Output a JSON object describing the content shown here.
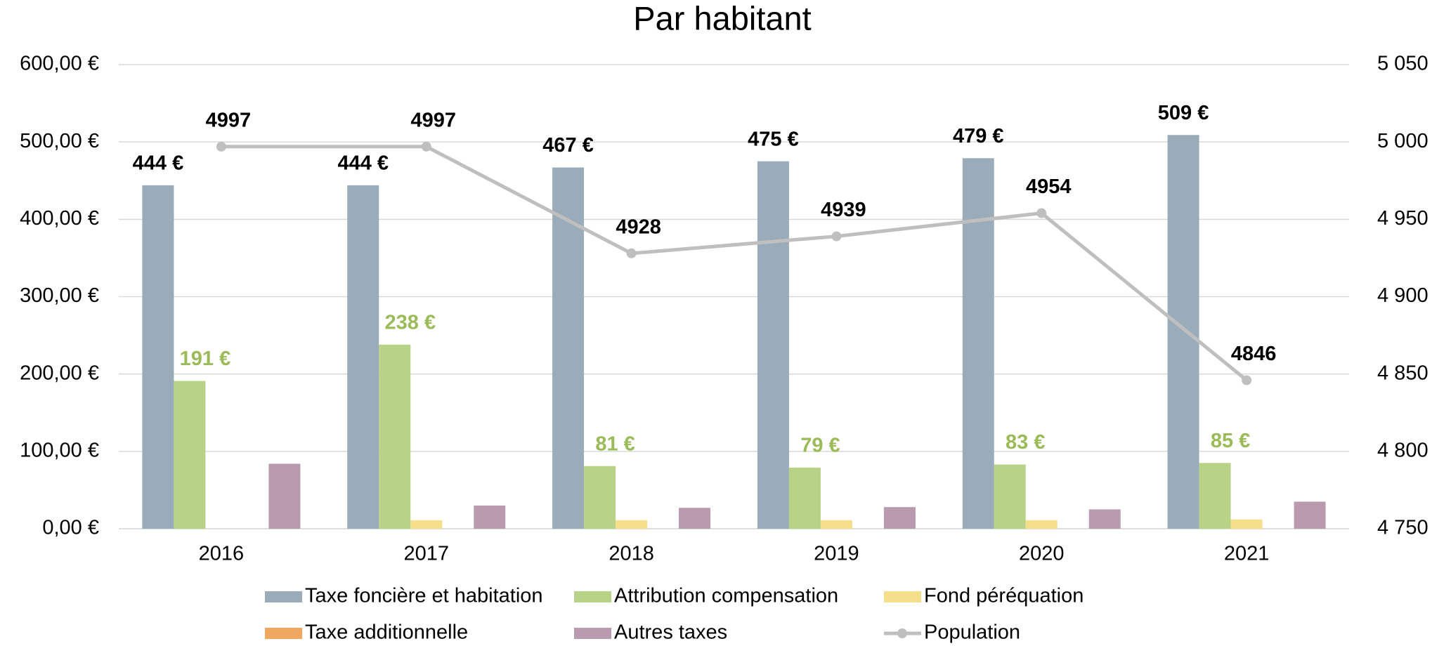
{
  "chart_data": {
    "type": "bar",
    "title": "Par habitant",
    "categories": [
      "2016",
      "2017",
      "2018",
      "2019",
      "2020",
      "2021"
    ],
    "series": [
      {
        "name": "Taxe foncière et habitation",
        "color": "#9aabb9",
        "values": [
          444,
          444,
          467,
          475,
          479,
          509
        ],
        "value_labels": [
          "444 €",
          "444 €",
          "467 €",
          "475 €",
          "479 €",
          "509 €"
        ],
        "label_color": "#000000"
      },
      {
        "name": "Attribution compensation",
        "color": "#b8d288",
        "values": [
          191,
          238,
          81,
          79,
          83,
          85
        ],
        "value_labels": [
          "191 €",
          "238 €",
          "81 €",
          "79 €",
          "83 €",
          "85 €"
        ],
        "label_color": "#9bbb59"
      },
      {
        "name": "Fond péréquation",
        "color": "#f5df8a",
        "values": [
          null,
          11,
          11,
          11,
          11,
          12
        ]
      },
      {
        "name": "Taxe additionnelle",
        "color": "#f0a860",
        "values": [
          null,
          null,
          null,
          null,
          null,
          null
        ]
      },
      {
        "name": "Autres taxes",
        "color": "#b99aae",
        "values": [
          84,
          30,
          27,
          28,
          25,
          35
        ]
      },
      {
        "name": "Population",
        "color": "#bfbfbf",
        "type": "line",
        "axis": "y2",
        "values": [
          4997,
          4997,
          4928,
          4939,
          4954,
          4846
        ],
        "label_color": "#000000"
      }
    ],
    "ylim": [
      0,
      600
    ],
    "yticks": [
      {
        "value": 0,
        "label": "0,00 €"
      },
      {
        "value": 100,
        "label": "100,00 €"
      },
      {
        "value": 200,
        "label": "200,00 €"
      },
      {
        "value": 300,
        "label": "300,00 €"
      },
      {
        "value": 400,
        "label": "400,00 €"
      },
      {
        "value": 500,
        "label": "500,00 €"
      },
      {
        "value": 600,
        "label": "600,00 €"
      }
    ],
    "y2lim": [
      4750,
      5050
    ],
    "y2ticks": [
      {
        "value": 4750,
        "label": "4 750"
      },
      {
        "value": 4800,
        "label": "4 800"
      },
      {
        "value": 4850,
        "label": "4 850"
      },
      {
        "value": 4900,
        "label": "4 900"
      },
      {
        "value": 4950,
        "label": "4 950"
      },
      {
        "value": 5000,
        "label": "5 000"
      },
      {
        "value": 5050,
        "label": "5 050"
      }
    ],
    "grid": true,
    "legend": "bottom"
  }
}
